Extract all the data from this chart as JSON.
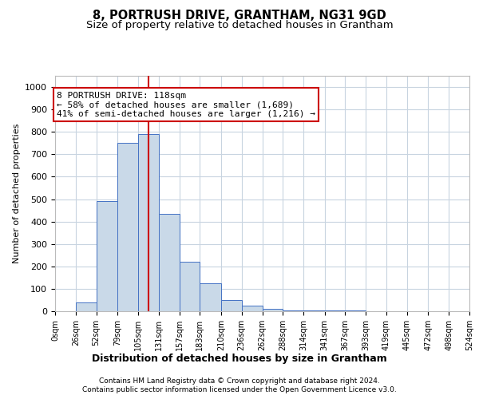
{
  "title1": "8, PORTRUSH DRIVE, GRANTHAM, NG31 9GD",
  "title2": "Size of property relative to detached houses in Grantham",
  "xlabel": "Distribution of detached houses by size in Grantham",
  "ylabel": "Number of detached properties",
  "bin_edges": [
    0,
    26,
    52,
    79,
    105,
    131,
    157,
    183,
    210,
    236,
    262,
    288,
    314,
    341,
    367,
    393,
    419,
    445,
    472,
    498,
    524
  ],
  "bar_heights": [
    0,
    40,
    490,
    750,
    790,
    435,
    220,
    125,
    50,
    25,
    10,
    5,
    3,
    2,
    2,
    1,
    1,
    1,
    1,
    1
  ],
  "bar_facecolor": "#c9d9e8",
  "bar_edgecolor": "#4472c4",
  "property_size": 118,
  "vline_color": "#cc0000",
  "annotation_line1": "8 PORTRUSH DRIVE: 118sqm",
  "annotation_line2": "← 58% of detached houses are smaller (1,689)",
  "annotation_line3": "41% of semi-detached houses are larger (1,216) →",
  "annotation_box_edgecolor": "#cc0000",
  "annotation_fontsize": 8,
  "ylim": [
    0,
    1050
  ],
  "yticks": [
    0,
    100,
    200,
    300,
    400,
    500,
    600,
    700,
    800,
    900,
    1000
  ],
  "tick_labels": [
    "0sqm",
    "26sqm",
    "52sqm",
    "79sqm",
    "105sqm",
    "131sqm",
    "157sqm",
    "183sqm",
    "210sqm",
    "236sqm",
    "262sqm",
    "288sqm",
    "314sqm",
    "341sqm",
    "367sqm",
    "393sqm",
    "419sqm",
    "445sqm",
    "472sqm",
    "498sqm",
    "524sqm"
  ],
  "footer1": "Contains HM Land Registry data © Crown copyright and database right 2024.",
  "footer2": "Contains public sector information licensed under the Open Government Licence v3.0.",
  "bg_color": "#ffffff",
  "grid_color": "#c8d4e0",
  "title1_fontsize": 10.5,
  "title2_fontsize": 9.5,
  "ylabel_fontsize": 8,
  "xlabel_fontsize": 9
}
